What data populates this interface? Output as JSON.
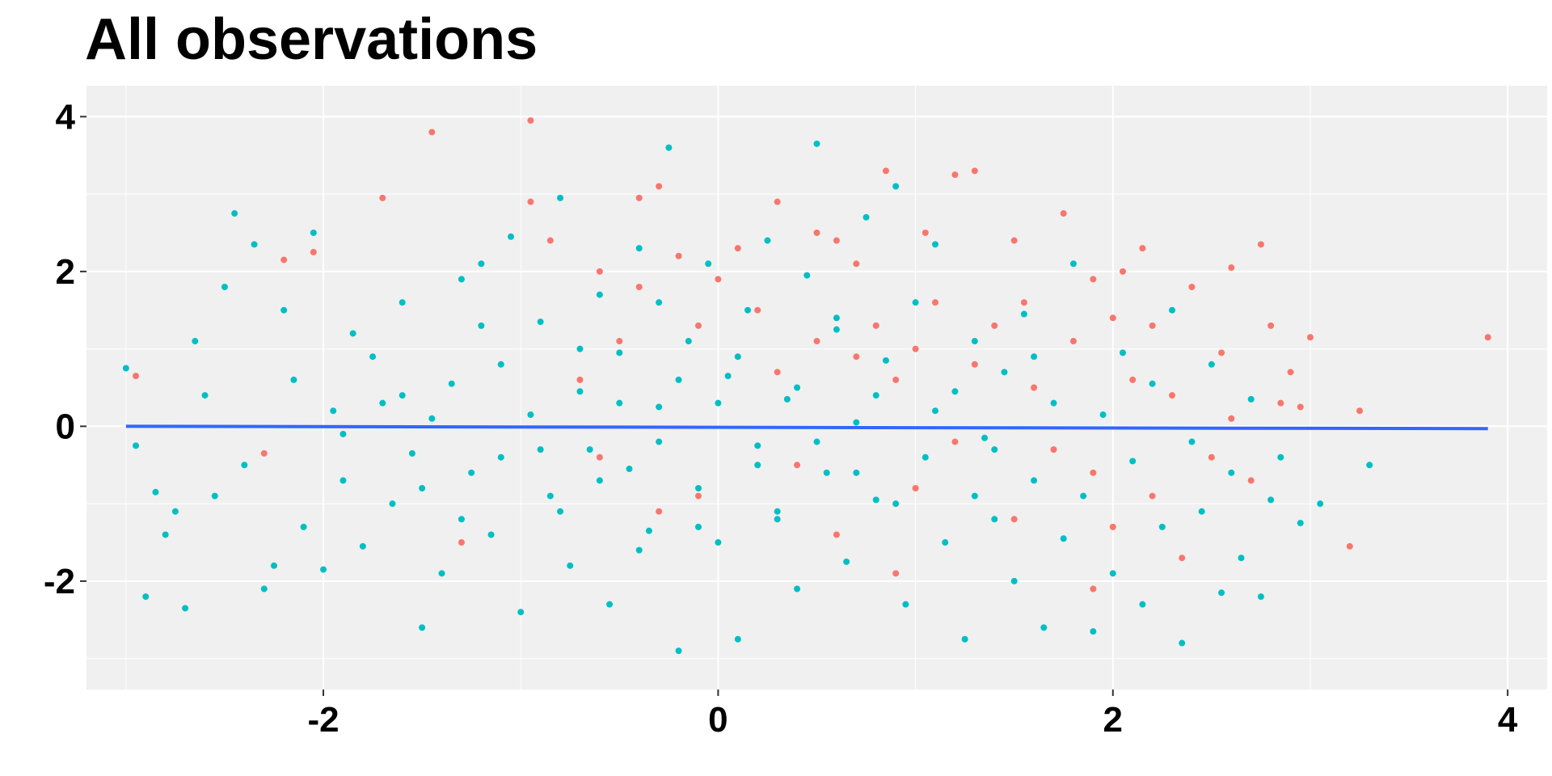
{
  "chart_data": {
    "type": "scatter",
    "title": "All observations",
    "xlabel": "",
    "ylabel": "",
    "xlim": [
      -3.2,
      4.2
    ],
    "ylim": [
      -3.4,
      4.4
    ],
    "x_ticks": [
      -2,
      0,
      2,
      4
    ],
    "x_tick_labels": [
      "-2",
      "0",
      "2",
      "4"
    ],
    "y_ticks": [
      -2,
      0,
      2,
      4
    ],
    "y_tick_labels": [
      "-2",
      "0",
      "2",
      "4"
    ],
    "grid": true,
    "legend": "none",
    "background": "#F0F0F0",
    "series": [
      {
        "color": "#00BFC4",
        "points": [
          [
            -3.0,
            0.75
          ],
          [
            -2.95,
            -0.25
          ],
          [
            -2.9,
            -2.2
          ],
          [
            -2.85,
            -0.85
          ],
          [
            -2.8,
            -1.4
          ],
          [
            -2.75,
            -1.1
          ],
          [
            -2.7,
            -2.35
          ],
          [
            -2.65,
            1.1
          ],
          [
            -2.6,
            0.4
          ],
          [
            -2.55,
            -0.9
          ],
          [
            -2.5,
            1.8
          ],
          [
            -2.45,
            2.75
          ],
          [
            -2.4,
            -0.5
          ],
          [
            -2.35,
            2.35
          ],
          [
            -2.3,
            -2.1
          ],
          [
            -2.25,
            -1.8
          ],
          [
            -2.2,
            1.5
          ],
          [
            -2.15,
            0.6
          ],
          [
            -2.1,
            -1.3
          ],
          [
            -2.05,
            2.5
          ],
          [
            -2.0,
            -1.85
          ],
          [
            -1.95,
            0.2
          ],
          [
            -1.9,
            -0.7
          ],
          [
            -1.85,
            1.2
          ],
          [
            -1.8,
            -1.55
          ],
          [
            -1.75,
            0.9
          ],
          [
            -1.7,
            0.3
          ],
          [
            -1.65,
            -1.0
          ],
          [
            -1.6,
            1.6
          ],
          [
            -1.55,
            -0.35
          ],
          [
            -1.5,
            -2.6
          ],
          [
            -1.45,
            0.1
          ],
          [
            -1.4,
            -1.9
          ],
          [
            -1.35,
            0.55
          ],
          [
            -1.3,
            1.9
          ],
          [
            -1.25,
            -0.6
          ],
          [
            -1.2,
            2.1
          ],
          [
            -1.15,
            -1.4
          ],
          [
            -1.1,
            0.8
          ],
          [
            -1.05,
            2.45
          ],
          [
            -1.0,
            -2.4
          ],
          [
            -0.95,
            0.15
          ],
          [
            -0.9,
            1.35
          ],
          [
            -0.85,
            -0.9
          ],
          [
            -0.8,
            2.95
          ],
          [
            -0.75,
            -1.8
          ],
          [
            -0.7,
            0.45
          ],
          [
            -0.65,
            -0.3
          ],
          [
            -0.6,
            1.7
          ],
          [
            -0.55,
            -2.3
          ],
          [
            -0.5,
            0.95
          ],
          [
            -0.45,
            -0.55
          ],
          [
            -0.4,
            2.3
          ],
          [
            -0.35,
            -1.35
          ],
          [
            -0.3,
            0.25
          ],
          [
            -0.25,
            3.6
          ],
          [
            -0.2,
            -2.9
          ],
          [
            -0.15,
            1.1
          ],
          [
            -0.1,
            -0.8
          ],
          [
            -0.05,
            2.1
          ],
          [
            0.0,
            -1.5
          ],
          [
            0.05,
            0.65
          ],
          [
            0.1,
            -2.75
          ],
          [
            0.15,
            1.5
          ],
          [
            0.2,
            -0.25
          ],
          [
            0.25,
            2.4
          ],
          [
            0.3,
            -1.1
          ],
          [
            0.35,
            0.35
          ],
          [
            0.4,
            -2.1
          ],
          [
            0.45,
            1.95
          ],
          [
            0.5,
            3.65
          ],
          [
            0.55,
            -0.6
          ],
          [
            0.6,
            1.25
          ],
          [
            0.65,
            -1.75
          ],
          [
            0.7,
            0.05
          ],
          [
            0.75,
            2.7
          ],
          [
            0.8,
            -0.95
          ],
          [
            0.85,
            0.85
          ],
          [
            0.9,
            3.1
          ],
          [
            0.95,
            -2.3
          ],
          [
            1.0,
            1.6
          ],
          [
            1.05,
            -0.4
          ],
          [
            1.1,
            2.35
          ],
          [
            1.15,
            -1.5
          ],
          [
            1.2,
            0.45
          ],
          [
            1.25,
            -2.75
          ],
          [
            1.3,
            1.1
          ],
          [
            1.35,
            -0.15
          ],
          [
            1.4,
            -1.2
          ],
          [
            1.45,
            0.7
          ],
          [
            1.5,
            -2.0
          ],
          [
            1.55,
            1.45
          ],
          [
            1.6,
            -0.7
          ],
          [
            1.65,
            -2.6
          ],
          [
            1.7,
            0.3
          ],
          [
            1.75,
            -1.45
          ],
          [
            1.8,
            2.1
          ],
          [
            1.85,
            -0.9
          ],
          [
            1.9,
            -2.65
          ],
          [
            1.95,
            0.15
          ],
          [
            2.0,
            -1.9
          ],
          [
            2.05,
            0.95
          ],
          [
            2.1,
            -0.45
          ],
          [
            2.15,
            -2.3
          ],
          [
            2.2,
            0.55
          ],
          [
            2.25,
            -1.3
          ],
          [
            2.3,
            1.5
          ],
          [
            2.35,
            -2.8
          ],
          [
            2.4,
            -0.2
          ],
          [
            2.45,
            -1.1
          ],
          [
            2.5,
            0.8
          ],
          [
            2.55,
            -2.15
          ],
          [
            2.6,
            -0.6
          ],
          [
            2.65,
            -1.7
          ],
          [
            2.7,
            0.35
          ],
          [
            2.75,
            -2.2
          ],
          [
            2.8,
            -0.95
          ],
          [
            2.85,
            -0.4
          ],
          [
            2.95,
            -1.25
          ],
          [
            3.05,
            -1.0
          ],
          [
            3.3,
            -0.5
          ],
          [
            -0.9,
            -0.3
          ],
          [
            -0.6,
            -0.7
          ],
          [
            -0.3,
            -0.2
          ],
          [
            0.2,
            -0.5
          ],
          [
            0.4,
            0.5
          ],
          [
            -0.5,
            0.3
          ],
          [
            0.1,
            0.9
          ],
          [
            -1.1,
            -0.4
          ],
          [
            0.7,
            -0.6
          ],
          [
            -0.2,
            0.6
          ],
          [
            1.4,
            -0.3
          ],
          [
            -1.6,
            0.4
          ],
          [
            0.3,
            -1.2
          ],
          [
            -0.7,
            1.0
          ],
          [
            1.1,
            0.2
          ],
          [
            -1.3,
            -1.2
          ],
          [
            0.6,
            1.4
          ],
          [
            -0.1,
            -1.3
          ],
          [
            0.9,
            -1.0
          ],
          [
            -0.4,
            -1.6
          ],
          [
            1.3,
            -0.9
          ],
          [
            -1.9,
            -0.1
          ],
          [
            0.0,
            0.3
          ],
          [
            -0.8,
            -1.1
          ],
          [
            0.5,
            -0.2
          ],
          [
            -1.2,
            1.3
          ],
          [
            1.6,
            0.9
          ],
          [
            -0.3,
            1.6
          ],
          [
            0.8,
            0.4
          ],
          [
            -1.5,
            -0.8
          ]
        ]
      },
      {
        "color": "#F8766D",
        "points": [
          [
            -2.95,
            0.65
          ],
          [
            -2.3,
            -0.35
          ],
          [
            -2.2,
            2.15
          ],
          [
            -2.05,
            2.25
          ],
          [
            -1.7,
            2.95
          ],
          [
            -1.45,
            3.8
          ],
          [
            -0.95,
            3.95
          ],
          [
            -0.95,
            2.9
          ],
          [
            -0.85,
            2.4
          ],
          [
            -0.6,
            2.0
          ],
          [
            -0.4,
            2.95
          ],
          [
            -0.3,
            3.1
          ],
          [
            0.1,
            2.3
          ],
          [
            0.3,
            2.9
          ],
          [
            0.5,
            2.5
          ],
          [
            0.6,
            2.4
          ],
          [
            0.7,
            2.1
          ],
          [
            0.85,
            3.3
          ],
          [
            1.05,
            2.5
          ],
          [
            1.2,
            3.25
          ],
          [
            1.3,
            3.3
          ],
          [
            1.5,
            2.4
          ],
          [
            1.55,
            1.6
          ],
          [
            1.75,
            2.75
          ],
          [
            1.9,
            1.9
          ],
          [
            2.0,
            1.4
          ],
          [
            2.05,
            2.0
          ],
          [
            2.15,
            2.3
          ],
          [
            2.2,
            1.3
          ],
          [
            2.4,
            1.8
          ],
          [
            2.55,
            0.95
          ],
          [
            2.6,
            2.05
          ],
          [
            2.75,
            2.35
          ],
          [
            2.8,
            1.3
          ],
          [
            2.85,
            0.3
          ],
          [
            2.9,
            0.7
          ],
          [
            2.95,
            0.25
          ],
          [
            3.0,
            1.15
          ],
          [
            3.2,
            -1.55
          ],
          [
            3.25,
            0.2
          ],
          [
            3.9,
            1.15
          ],
          [
            2.35,
            -1.7
          ],
          [
            2.2,
            -0.9
          ],
          [
            1.9,
            -0.6
          ],
          [
            2.5,
            -0.4
          ],
          [
            2.7,
            -0.7
          ],
          [
            2.1,
            0.6
          ],
          [
            1.8,
            1.1
          ],
          [
            1.6,
            0.5
          ],
          [
            1.4,
            1.3
          ],
          [
            1.3,
            0.8
          ],
          [
            1.1,
            1.6
          ],
          [
            1.0,
            1.0
          ],
          [
            0.9,
            0.6
          ],
          [
            0.8,
            1.3
          ],
          [
            0.7,
            0.9
          ],
          [
            0.5,
            1.1
          ],
          [
            0.3,
            0.7
          ],
          [
            0.2,
            1.5
          ],
          [
            0.0,
            1.9
          ],
          [
            -0.1,
            1.3
          ],
          [
            -0.2,
            2.2
          ],
          [
            -0.4,
            1.8
          ],
          [
            -0.5,
            1.1
          ],
          [
            -0.7,
            0.6
          ],
          [
            -0.1,
            -0.9
          ],
          [
            0.4,
            -0.5
          ],
          [
            1.2,
            -0.2
          ],
          [
            1.7,
            -0.3
          ],
          [
            2.3,
            0.4
          ],
          [
            1.5,
            -1.2
          ],
          [
            0.6,
            -1.4
          ],
          [
            -0.3,
            -1.1
          ],
          [
            -1.3,
            -1.5
          ],
          [
            1.9,
            -2.1
          ],
          [
            0.9,
            -1.9
          ],
          [
            -0.6,
            -0.4
          ],
          [
            1.0,
            -0.8
          ],
          [
            2.6,
            0.1
          ],
          [
            2.0,
            -1.3
          ]
        ]
      },
      {
        "type": "line",
        "color": "#3366FF",
        "points": [
          [
            -3.0,
            0.0
          ],
          [
            3.9,
            -0.03
          ]
        ]
      }
    ]
  }
}
